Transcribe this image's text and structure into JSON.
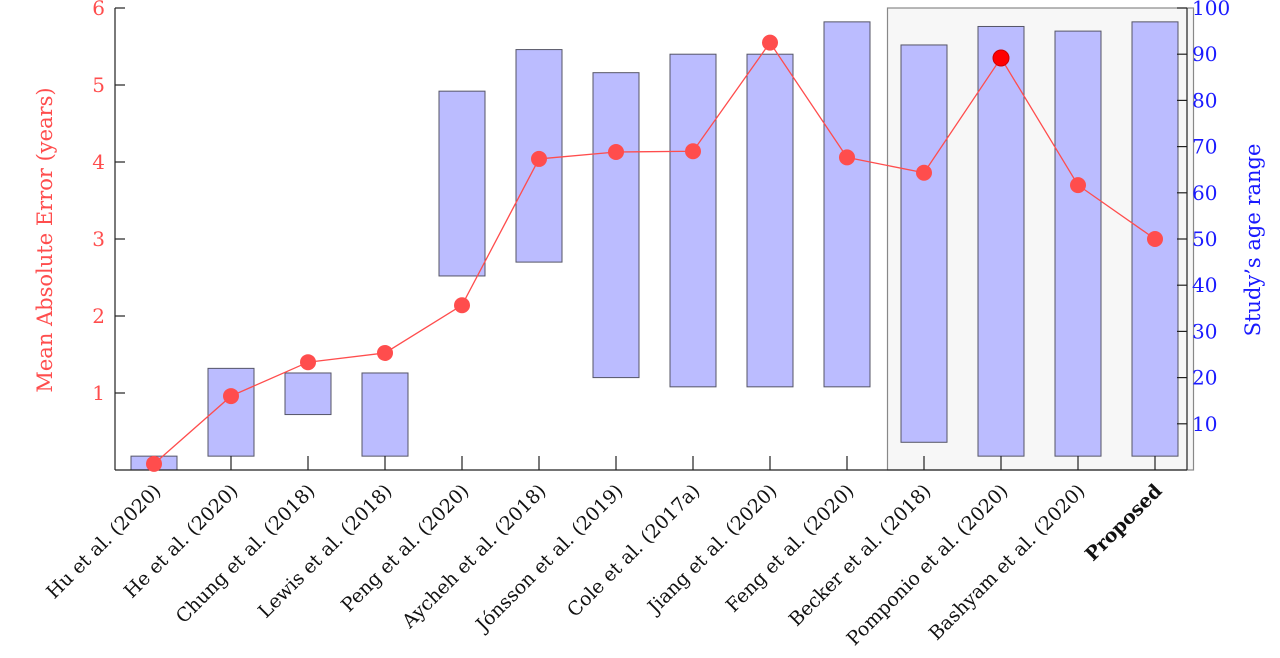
{
  "chart_data": {
    "type": "bar+line",
    "categories": [
      "Hu et al. (2020)",
      "He et al. (2020)",
      "Chung et al. (2018)",
      "Lewis et al. (2018)",
      "Peng et al. (2020)",
      "Aycheh et al. (2018)",
      "Jónsson et al. (2019)",
      "Cole et al. (2017a)",
      "Jiang et al. (2020)",
      "Feng et al. (2020)",
      "Becker et al. (2018)",
      "Pomponio et al. (2020)",
      "Bashyam et al. (2020)",
      "Proposed"
    ],
    "bold_category": "Proposed",
    "highlighted_categories": [
      "Becker et al. (2018)",
      "Pomponio et al. (2020)",
      "Bashyam et al. (2020)",
      "Proposed"
    ],
    "age_range": [
      [
        0,
        3
      ],
      [
        3,
        22
      ],
      [
        12,
        21
      ],
      [
        3,
        21
      ],
      [
        42,
        82
      ],
      [
        45,
        91
      ],
      [
        20,
        86
      ],
      [
        18,
        90
      ],
      [
        18,
        90
      ],
      [
        18,
        97
      ],
      [
        6,
        92
      ],
      [
        3,
        96
      ],
      [
        3,
        95
      ],
      [
        3,
        97
      ]
    ],
    "mae": [
      0.08,
      0.96,
      1.4,
      1.52,
      2.14,
      4.04,
      4.13,
      4.14,
      5.55,
      4.06,
      3.86,
      5.35,
      3.7,
      3.0
    ],
    "highlight_point_index": 11,
    "y_left": {
      "label": "Mean Absolute Error (years)",
      "range": [
        0,
        6
      ],
      "ticks": [
        1,
        2,
        3,
        4,
        5,
        6
      ],
      "color": "#ff4d4d"
    },
    "y_right": {
      "label": "Study’s age range",
      "range": [
        0,
        100
      ],
      "ticks": [
        10,
        20,
        30,
        40,
        50,
        60,
        70,
        80,
        90,
        100
      ],
      "color": "#1a1aff"
    },
    "bar_color": "#bbbcff",
    "line_color": "#ff4d4d",
    "highlight_point_color": "#ff0000"
  }
}
